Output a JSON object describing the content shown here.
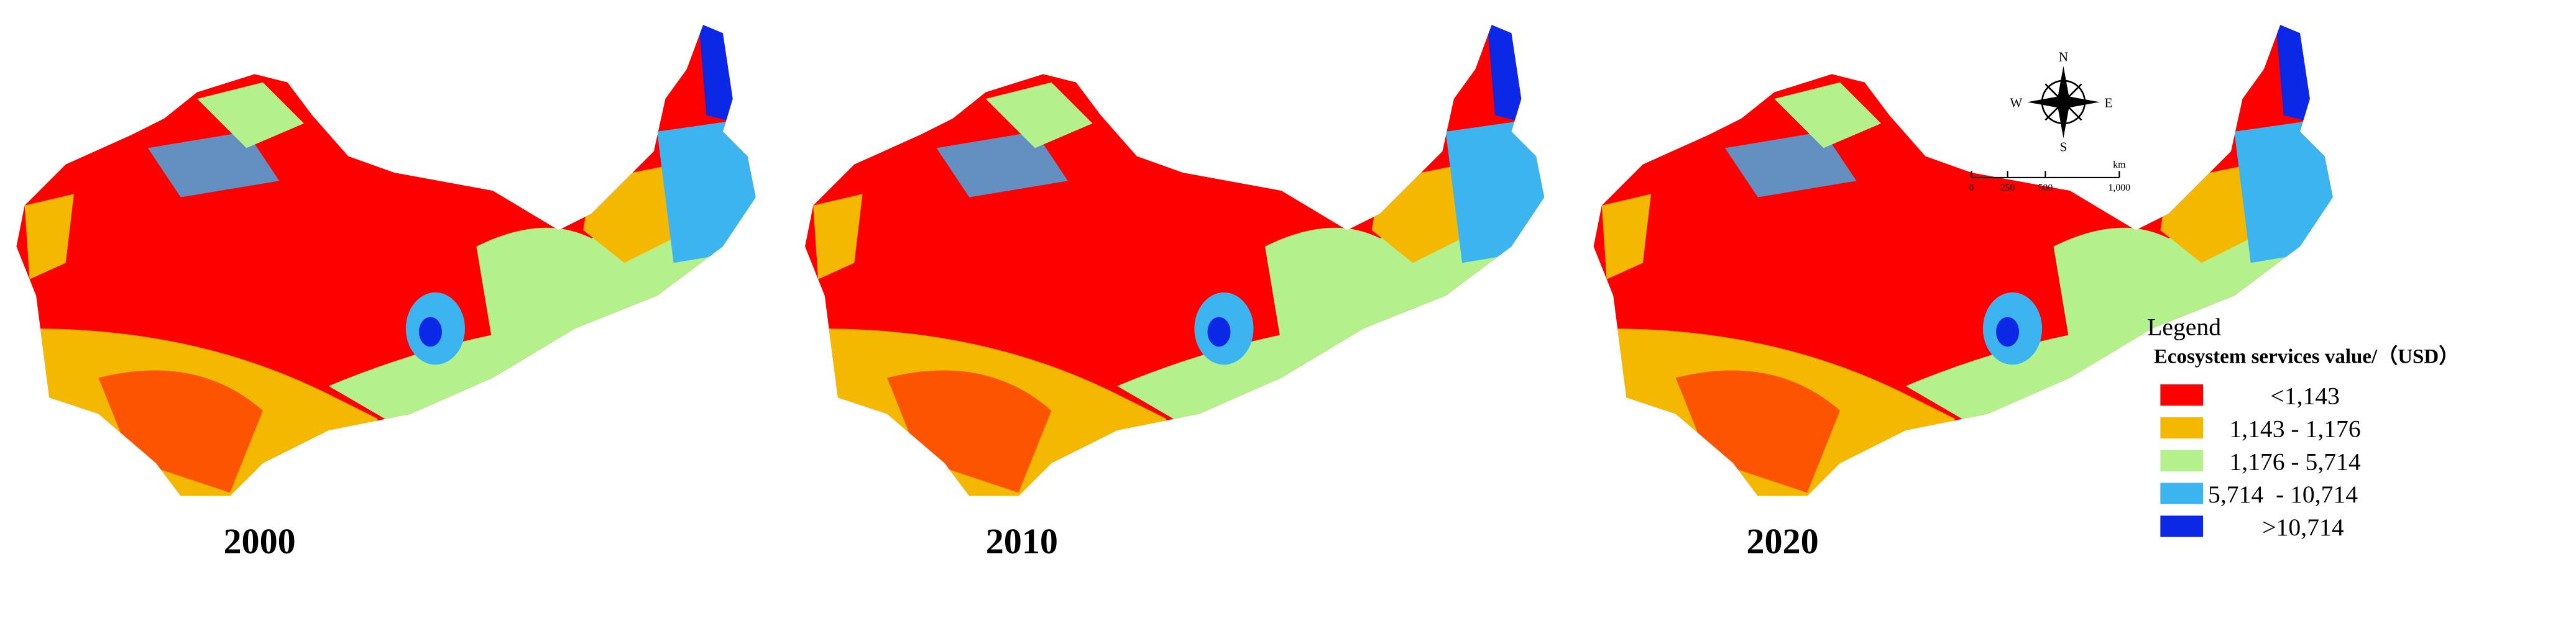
{
  "maps": [
    "2000",
    "2010",
    "2020"
  ],
  "compass": {
    "n": "N",
    "s": "S",
    "e": "E",
    "w": "W"
  },
  "scale_bar": {
    "labels": [
      "0",
      "250",
      "500",
      "1,000"
    ],
    "unit": "km"
  },
  "legend": {
    "heading": "Legend",
    "title": "Ecosystem services value/（USD）",
    "items": [
      "<1,143",
      "1,143 - 1,176",
      "1,176 - 5,714",
      "5,714  - 10,714",
      ">10,714"
    ]
  }
}
